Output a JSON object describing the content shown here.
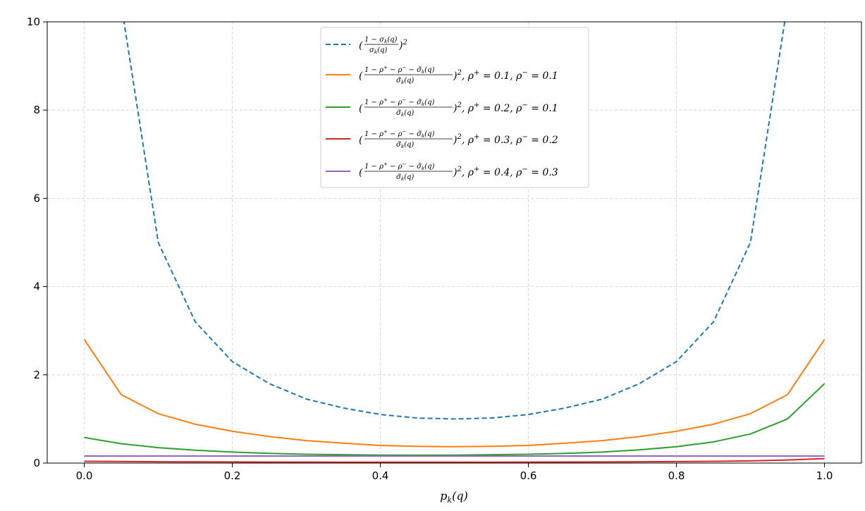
{
  "chart_data": {
    "type": "line",
    "title": "",
    "xlabel": "p_k(q)",
    "ylabel": "",
    "xlim": [
      -0.05,
      1.05
    ],
    "ylim": [
      0,
      10
    ],
    "x_ticks": [
      "0.0",
      "0.2",
      "0.4",
      "0.6",
      "0.8",
      "1.0"
    ],
    "y_ticks": [
      "0",
      "2",
      "4",
      "6",
      "8",
      "10"
    ],
    "grid": true,
    "legend_position": "top-center",
    "x": [
      0.0,
      0.05,
      0.1,
      0.15,
      0.2,
      0.25,
      0.3,
      0.35,
      0.4,
      0.45,
      0.5,
      0.55,
      0.6,
      0.65,
      0.7,
      0.75,
      0.8,
      0.85,
      0.9,
      0.95,
      1.0
    ],
    "series": [
      {
        "name": "((1 − σk(q)) / σk(q))²",
        "color": "#1f77b4",
        "style": "dashed",
        "values": [
          null,
          10.4,
          5.0,
          3.2,
          2.3,
          1.8,
          1.45,
          1.25,
          1.1,
          1.02,
          1.0,
          1.02,
          1.1,
          1.25,
          1.45,
          1.8,
          2.3,
          3.2,
          5.0,
          10.4,
          null
        ]
      },
      {
        "name": "((1 − ρ⁺ − ρ⁻ − σ̃k(q)) / σ̃k(q))², ρ⁺ = 0.1, ρ⁻ = 0.1",
        "color": "#ff7f0e",
        "style": "solid",
        "values": [
          2.8,
          1.55,
          1.12,
          0.88,
          0.72,
          0.6,
          0.51,
          0.45,
          0.4,
          0.38,
          0.37,
          0.38,
          0.4,
          0.45,
          0.51,
          0.6,
          0.72,
          0.88,
          1.12,
          1.55,
          2.8
        ]
      },
      {
        "name": "((1 − ρ⁺ − ρ⁻ − σ̃k(q)) / σ̃k(q))², ρ⁺ = 0.2, ρ⁻ = 0.1",
        "color": "#2ca02c",
        "style": "solid",
        "values": [
          0.58,
          0.44,
          0.35,
          0.29,
          0.25,
          0.22,
          0.2,
          0.19,
          0.18,
          0.18,
          0.18,
          0.19,
          0.2,
          0.22,
          0.25,
          0.3,
          0.37,
          0.48,
          0.66,
          1.0,
          1.8
        ]
      },
      {
        "name": "((1 − ρ⁺ − ρ⁻ − σ̃k(q)) / σ̃k(q))², ρ⁺ = 0.3, ρ⁻ = 0.2",
        "color": "#d62728",
        "style": "solid",
        "values": [
          0.04,
          0.035,
          0.03,
          0.027,
          0.025,
          0.023,
          0.022,
          0.021,
          0.02,
          0.02,
          0.02,
          0.021,
          0.022,
          0.024,
          0.026,
          0.03,
          0.034,
          0.04,
          0.05,
          0.07,
          0.1
        ]
      },
      {
        "name": "((1 − ρ⁺ − ρ⁻ − σ̃k(q)) / σ̃k(q))², ρ⁺ = 0.4, ρ⁻ = 0.3",
        "color": "#9467bd",
        "style": "solid",
        "values": [
          0.16,
          0.16,
          0.16,
          0.16,
          0.16,
          0.16,
          0.16,
          0.16,
          0.16,
          0.16,
          0.16,
          0.16,
          0.16,
          0.16,
          0.16,
          0.16,
          0.16,
          0.16,
          0.16,
          0.16,
          0.16
        ]
      }
    ]
  }
}
